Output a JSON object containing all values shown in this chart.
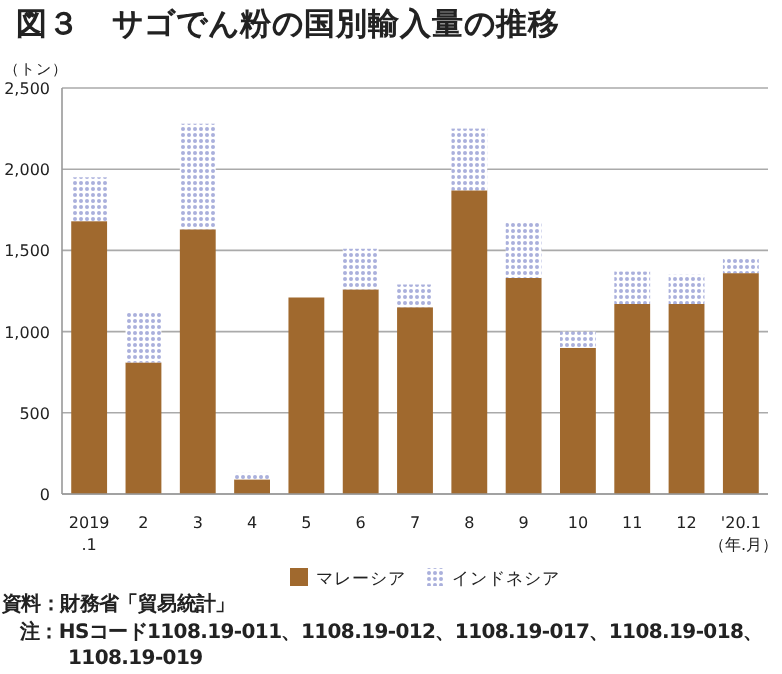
{
  "chart_data": {
    "type": "bar",
    "stacked": true,
    "title": "図３　サゴでん粉の国別輸入量の推移",
    "ylabel": "（トン）",
    "xlabel": "（年.月）",
    "categories": [
      "2019\n.1",
      "2",
      "3",
      "4",
      "5",
      "6",
      "7",
      "8",
      "9",
      "10",
      "11",
      "12",
      "'20.1"
    ],
    "series": [
      {
        "name": "マレーシア",
        "color": "#a0692e",
        "values": [
          1680,
          810,
          1630,
          90,
          1210,
          1260,
          1150,
          1870,
          1330,
          900,
          1170,
          1170,
          1360
        ]
      },
      {
        "name": "インドネシア",
        "color": "#aab0dc",
        "values": [
          270,
          310,
          650,
          40,
          0,
          250,
          140,
          380,
          350,
          100,
          200,
          180,
          90
        ]
      }
    ],
    "ylim": [
      0,
      2500
    ],
    "yticks": [
      {
        "value": 0,
        "label": "0"
      },
      {
        "value": 500,
        "label": "500"
      },
      {
        "value": 1000,
        "label": "1,000"
      },
      {
        "value": 1500,
        "label": "1,500"
      },
      {
        "value": 2000,
        "label": "2,000"
      },
      {
        "value": 2500,
        "label": "2,500"
      }
    ],
    "grid": "y",
    "legend": "bottom",
    "annotations": [
      "資料：財務省「貿易統計」",
      "注：HSコード1108.19-011、1108.19-012、1108.19-017、1108.19-018、1108.19-019"
    ]
  }
}
